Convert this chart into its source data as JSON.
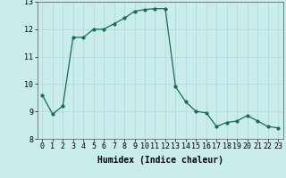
{
  "x": [
    0,
    1,
    2,
    3,
    4,
    5,
    6,
    7,
    8,
    9,
    10,
    11,
    12,
    13,
    14,
    15,
    16,
    17,
    18,
    19,
    20,
    21,
    22,
    23
  ],
  "y": [
    9.6,
    8.9,
    9.2,
    11.7,
    11.7,
    12.0,
    12.0,
    12.2,
    12.4,
    12.65,
    12.72,
    12.75,
    12.75,
    9.9,
    9.35,
    9.0,
    8.95,
    8.45,
    8.6,
    8.65,
    8.85,
    8.65,
    8.45,
    8.4
  ],
  "ylim": [
    8,
    13
  ],
  "yticks": [
    8,
    9,
    10,
    11,
    12,
    13
  ],
  "xticks": [
    0,
    1,
    2,
    3,
    4,
    5,
    6,
    7,
    8,
    9,
    10,
    11,
    12,
    13,
    14,
    15,
    16,
    17,
    18,
    19,
    20,
    21,
    22,
    23
  ],
  "xlabel": "Humidex (Indice chaleur)",
  "line_color": "#1a6b5a",
  "marker": "o",
  "marker_size": 2,
  "bg_color": "#c9ecec",
  "grid_color": "#b0d8d8",
  "tick_fontsize": 6,
  "label_fontsize": 7
}
